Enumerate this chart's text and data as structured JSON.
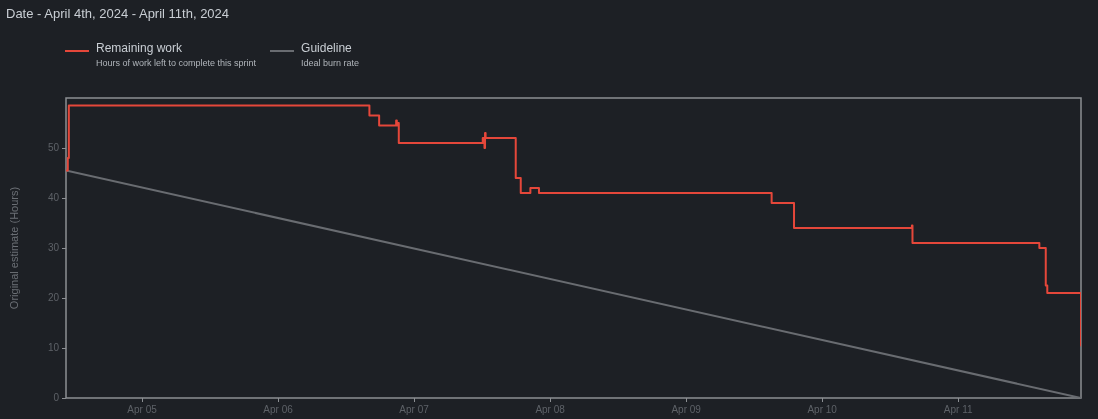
{
  "chart_data": {
    "type": "line",
    "title": "Date - April 4th, 2024 - April 11th, 2024",
    "ylabel": "Original estimate (Hours)",
    "xlim": [
      "2024-04-04T10:35",
      "2024-04-11T21:40"
    ],
    "xticks": [
      {
        "value": "2024-04-05",
        "label": "Apr 05"
      },
      {
        "value": "2024-04-06",
        "label": "Apr 06"
      },
      {
        "value": "2024-04-07",
        "label": "Apr 07"
      },
      {
        "value": "2024-04-08",
        "label": "Apr 08"
      },
      {
        "value": "2024-04-09",
        "label": "Apr 09"
      },
      {
        "value": "2024-04-10",
        "label": "Apr 10"
      },
      {
        "value": "2024-04-11",
        "label": "Apr 11"
      }
    ],
    "ylim": [
      0,
      60
    ],
    "yticks": [
      0,
      10,
      20,
      30,
      40,
      50
    ],
    "legend": "top",
    "annotations": [
      "Hours of work left to complete this sprint",
      "Ideal burn rate"
    ],
    "series": [
      {
        "name": "Remaining work",
        "type": "step",
        "color": "#e5473a",
        "x": [
          "2024-04-04T10:35",
          "2024-04-04T10:54",
          "2024-04-04T11:05",
          "2024-04-06T16:07",
          "2024-04-06T17:50",
          "2024-04-06T20:50",
          "2024-04-06T20:57",
          "2024-04-06T21:03",
          "2024-04-06T21:18",
          "2024-04-07T12:07",
          "2024-04-07T12:25",
          "2024-04-07T12:31",
          "2024-04-07T12:37",
          "2024-04-07T17:56",
          "2024-04-07T18:49",
          "2024-04-07T20:31",
          "2024-04-07T22:02",
          "2024-04-09T15:05",
          "2024-04-09T19:02",
          "2024-04-10T15:50",
          "2024-04-10T15:56",
          "2024-04-11T14:19",
          "2024-04-11T15:27",
          "2024-04-11T15:43",
          "2024-04-11T21:40"
        ],
        "values": [
          45.5,
          48,
          58.5,
          56.5,
          54.5,
          55.5,
          54.5,
          55,
          51,
          52,
          50,
          53,
          52,
          44,
          41,
          42,
          41,
          39,
          34,
          34.5,
          31,
          30,
          22.5,
          21,
          10.5
        ]
      },
      {
        "name": "Guideline",
        "type": "line",
        "color": "#696c71",
        "x": [
          "2024-04-04T10:35",
          "2024-04-11T21:40"
        ],
        "values": [
          45.5,
          0
        ]
      }
    ]
  }
}
